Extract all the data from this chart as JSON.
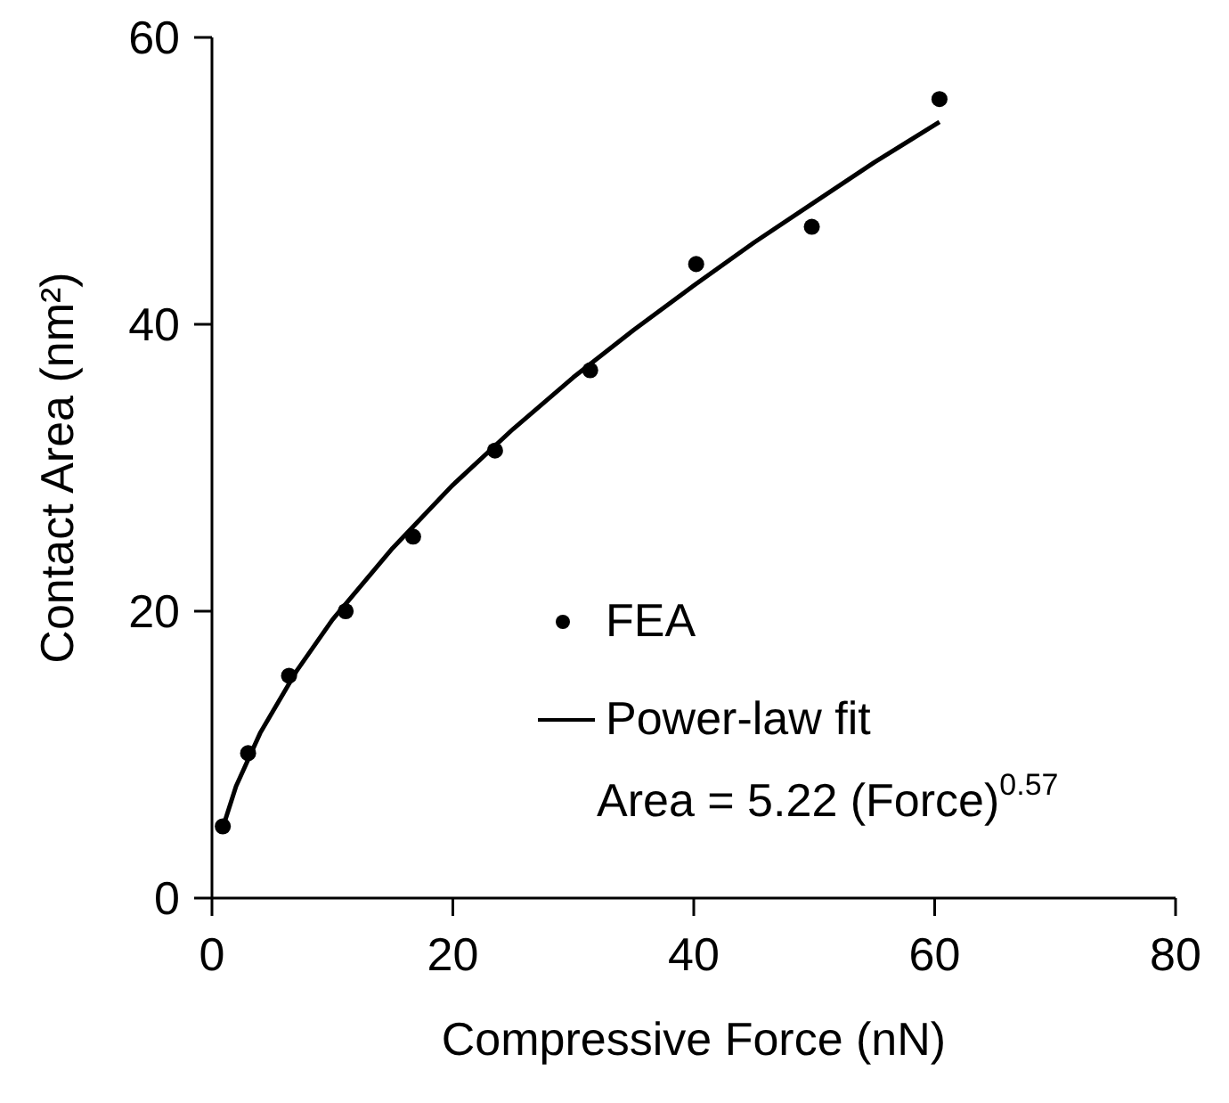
{
  "chart_data": {
    "type": "scatter",
    "xlabel": "Compressive Force (nN)",
    "ylabel": "Contact Area (nm²)",
    "xlim": [
      0,
      80
    ],
    "xticks": [
      0,
      20,
      40,
      60,
      80
    ],
    "ylim": [
      0,
      60
    ],
    "yticks": [
      0,
      20,
      40,
      60
    ],
    "grid": false,
    "legend": "bottom right",
    "marker": "circle",
    "annotations": [
      "Area = 5.22 (Force)$^{0.57}$"
    ],
    "series": [
      {
        "name": "FEA",
        "color": "#000000",
        "x": [
          0.9,
          3.0,
          6.4,
          11.1,
          16.7,
          23.5,
          31.4,
          40.2,
          49.8,
          60.4
        ],
        "values": [
          5.0,
          10.1,
          15.5,
          20.0,
          25.2,
          31.2,
          36.8,
          44.2,
          46.8,
          55.7
        ]
      },
      {
        "name": "Power-law fit",
        "type": "line",
        "color": "#000000",
        "marker": "none",
        "line_style": "solid",
        "x": [
          0.9,
          2,
          4,
          7,
          10,
          15,
          20,
          25,
          30,
          35,
          40,
          45,
          50,
          55,
          60.4
        ],
        "values": [
          4.9,
          7.8,
          11.5,
          15.8,
          19.4,
          24.4,
          28.8,
          32.7,
          36.3,
          39.6,
          42.7,
          45.7,
          48.5,
          51.3,
          54.1
        ]
      }
    ]
  }
}
